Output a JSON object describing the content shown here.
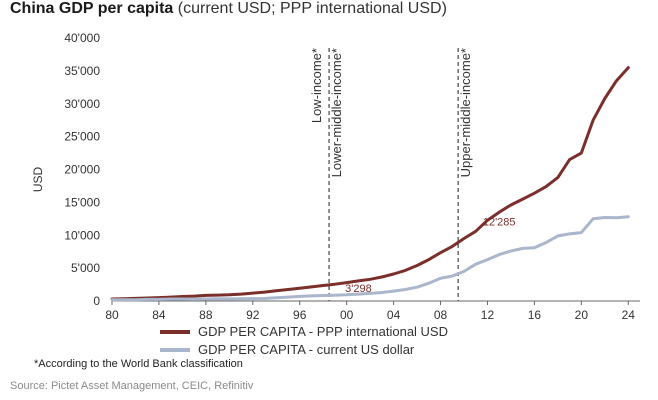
{
  "header": {
    "title_bold": "China GDP per capita",
    "title_rest": " (current USD; PPP international USD)"
  },
  "colors": {
    "ppp": "#7a2f2b",
    "current": "#a9b6cc",
    "axis": "#666666",
    "divider": "#444444",
    "label": "#7a2f2b"
  },
  "chart_data": {
    "type": "line",
    "ylabel": "USD",
    "xlim": [
      1980,
      2025
    ],
    "ylim": [
      0,
      40000
    ],
    "yticks": [
      0,
      5000,
      10000,
      15000,
      20000,
      25000,
      30000,
      35000,
      40000
    ],
    "ytick_labels": [
      "0",
      "5'000",
      "10'000",
      "15'000",
      "20'000",
      "25'000",
      "30'000",
      "35'000",
      "40'000"
    ],
    "xticks": [
      1980,
      1984,
      1988,
      1992,
      1996,
      2000,
      2004,
      2008,
      2012,
      2016,
      2020,
      2024
    ],
    "xtick_labels": [
      "80",
      "84",
      "88",
      "92",
      "96",
      "00",
      "04",
      "08",
      "12",
      "16",
      "20",
      "24"
    ],
    "grid": false,
    "legend_position": "bottom",
    "series": [
      {
        "name": "GDP PER CAPITA - PPP international USD",
        "x": [
          1980,
          1981,
          1982,
          1983,
          1984,
          1985,
          1986,
          1987,
          1988,
          1989,
          1990,
          1991,
          1992,
          1993,
          1994,
          1995,
          1996,
          1997,
          1998,
          1999,
          2000,
          2001,
          2002,
          2003,
          2004,
          2005,
          2006,
          2007,
          2008,
          2009,
          2010,
          2011,
          2012,
          2013,
          2014,
          2015,
          2016,
          2017,
          2018,
          2019,
          2020,
          2021,
          2022,
          2023,
          2024
        ],
        "values": [
          300,
          350,
          400,
          450,
          520,
          600,
          680,
          750,
          850,
          900,
          950,
          1050,
          1200,
          1350,
          1550,
          1750,
          1950,
          2150,
          2350,
          2550,
          2800,
          3050,
          3300,
          3650,
          4100,
          4650,
          5400,
          6300,
          7350,
          8300,
          9500,
          10600,
          12285,
          13500,
          14600,
          15500,
          16400,
          17400,
          18800,
          21500,
          22500,
          27500,
          30800,
          33500,
          35500
        ]
      },
      {
        "name": "GDP PER CAPITA - current US dollar",
        "x": [
          1980,
          1981,
          1982,
          1983,
          1984,
          1985,
          1986,
          1987,
          1988,
          1989,
          1990,
          1991,
          1992,
          1993,
          1994,
          1995,
          1996,
          1997,
          1998,
          1999,
          2000,
          2001,
          2002,
          2003,
          2004,
          2005,
          2006,
          2007,
          2008,
          2009,
          2010,
          2011,
          2012,
          2013,
          2014,
          2015,
          2016,
          2017,
          2018,
          2019,
          2020,
          2021,
          2022,
          2023,
          2024
        ],
        "values": [
          200,
          200,
          200,
          250,
          250,
          300,
          300,
          280,
          300,
          330,
          320,
          340,
          370,
          380,
          480,
          600,
          700,
          780,
          830,
          880,
          950,
          1050,
          1150,
          1300,
          1500,
          1750,
          2100,
          2700,
          3450,
          3800,
          4500,
          5600,
          6300,
          7050,
          7600,
          8000,
          8100,
          8900,
          9900,
          10200,
          10400,
          12500,
          12700,
          12650,
          12800
        ]
      }
    ],
    "dividers": [
      {
        "x": 1998.5,
        "label": "Low-income*",
        "side": "left"
      },
      {
        "x": 1998.5,
        "label": "Lower-middle-income*",
        "side": "right"
      },
      {
        "x": 2009.5,
        "label": "Upper-middle-income*",
        "side": "right"
      }
    ],
    "annotations": [
      {
        "text": "3'298",
        "x": 2001,
        "y": 1400
      },
      {
        "text": "12'285",
        "x": 2013,
        "y": 11500
      }
    ]
  },
  "legend": [
    {
      "label": "GDP PER CAPITA - PPP international USD",
      "color_key": "ppp"
    },
    {
      "label": "GDP PER CAPITA - current US dollar",
      "color_key": "current"
    }
  ],
  "footnote": "*According to the World Bank classification",
  "source": "Source: Pictet Asset Management, CEIC, Refinitiv"
}
